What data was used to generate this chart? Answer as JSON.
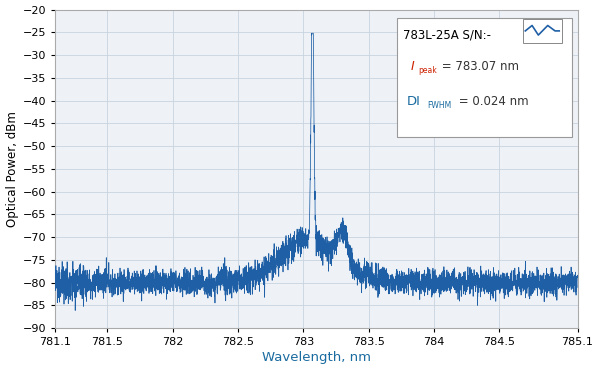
{
  "xlabel": "Wavelength, nm",
  "ylabel": "Optical Power, dBm",
  "xlim": [
    781.1,
    785.1
  ],
  "ylim": [
    -90,
    -20
  ],
  "xtick_vals": [
    781.1,
    781.5,
    782.0,
    782.5,
    783.0,
    783.5,
    784.0,
    784.5,
    785.1
  ],
  "xtick_labels": [
    "781.1",
    "781.5",
    "782",
    "782.5",
    "783",
    "783.5",
    "784",
    "784.5",
    "785.1"
  ],
  "yticks": [
    -90,
    -85,
    -80,
    -75,
    -70,
    -65,
    -60,
    -55,
    -50,
    -45,
    -40,
    -35,
    -30,
    -25,
    -20
  ],
  "line_color": "#1f5fa6",
  "noise_level": -80.0,
  "noise_std": 1.4,
  "peak_wavelength": 783.07,
  "peak_power": -25.2,
  "bg_color": "#eef2f7",
  "grid_color": "#c8d4e0",
  "xlabel_color": "#1a6ba0",
  "label_model": "783L-25A S/N:-",
  "label_peak_val": " = 783.07 nm",
  "label_fwhm_val": " = 0.024 nm",
  "n_points": 4000
}
